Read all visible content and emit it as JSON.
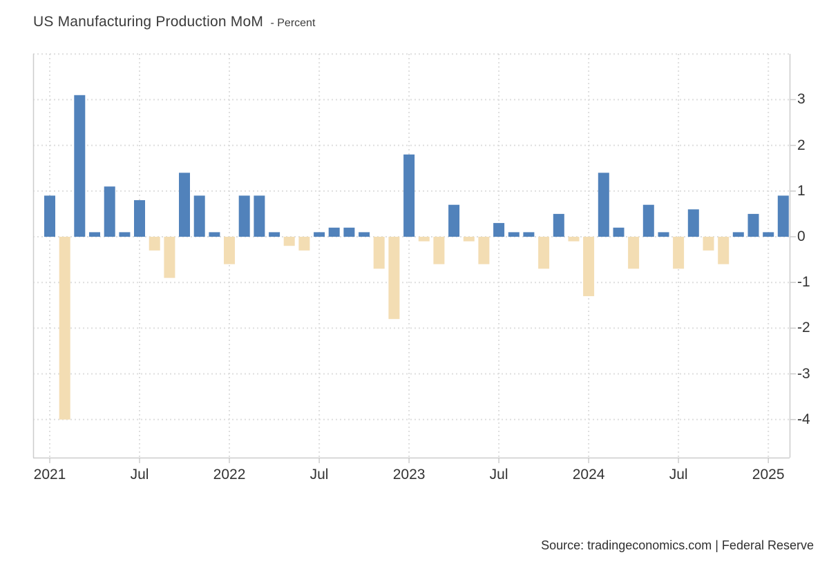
{
  "header": {
    "title": "US Manufacturing Production MoM",
    "subtitle": "- Percent"
  },
  "footer": {
    "source_text": "Source: tradingeconomics.com | Federal Reserve"
  },
  "colors": {
    "positive_bar": "#5182bb",
    "negative_bar": "#f3ddb3",
    "gridline": "#dedede",
    "axis_line": "#cccccc",
    "text": "#333333"
  },
  "chart_data": {
    "type": "bar",
    "title": "US Manufacturing Production MoM",
    "ylabel": "Percent",
    "xlabel": "",
    "legend": "none",
    "grid": "dotted",
    "ylim": [
      -4.85,
      4.0
    ],
    "y_ticks": [
      3,
      2,
      1,
      0,
      -1,
      -2,
      -3,
      -4
    ],
    "grid_values": [
      4,
      3,
      2,
      1,
      0,
      -1,
      -2,
      -3,
      -4
    ],
    "x_tick_labels": [
      "2021",
      "Jul",
      "2022",
      "Jul",
      "2023",
      "Jul",
      "2024",
      "Jul",
      "2025"
    ],
    "x_tick_month_indices": [
      0,
      6,
      12,
      18,
      24,
      30,
      36,
      42,
      48
    ],
    "months": [
      "2021-01",
      "2021-02",
      "2021-03",
      "2021-04",
      "2021-05",
      "2021-06",
      "2021-07",
      "2021-08",
      "2021-09",
      "2021-10",
      "2021-11",
      "2021-12",
      "2022-01",
      "2022-02",
      "2022-03",
      "2022-04",
      "2022-05",
      "2022-06",
      "2022-07",
      "2022-08",
      "2022-09",
      "2022-10",
      "2022-11",
      "2022-12",
      "2023-01",
      "2023-02",
      "2023-03",
      "2023-04",
      "2023-05",
      "2023-06",
      "2023-07",
      "2023-08",
      "2023-09",
      "2023-10",
      "2023-11",
      "2023-12",
      "2024-01",
      "2024-02",
      "2024-03",
      "2024-04",
      "2024-05",
      "2024-06",
      "2024-07",
      "2024-08",
      "2024-09",
      "2024-10",
      "2024-11",
      "2024-12",
      "2025-01",
      "2025-02"
    ],
    "values": [
      0.9,
      -4.0,
      3.1,
      0.1,
      1.1,
      0.1,
      0.8,
      -0.3,
      -0.9,
      1.4,
      0.9,
      0.1,
      -0.6,
      0.9,
      0.9,
      0.1,
      -0.2,
      -0.3,
      0.1,
      0.2,
      0.2,
      0.1,
      -0.7,
      -1.8,
      1.8,
      -0.1,
      -0.6,
      0.7,
      -0.1,
      -0.6,
      0.3,
      0.1,
      0.1,
      -0.7,
      0.5,
      -0.1,
      -1.3,
      1.4,
      0.2,
      -0.7,
      0.7,
      0.1,
      -0.7,
      0.6,
      -0.3,
      -0.6,
      0.1,
      0.5,
      0.1,
      0.9
    ]
  }
}
